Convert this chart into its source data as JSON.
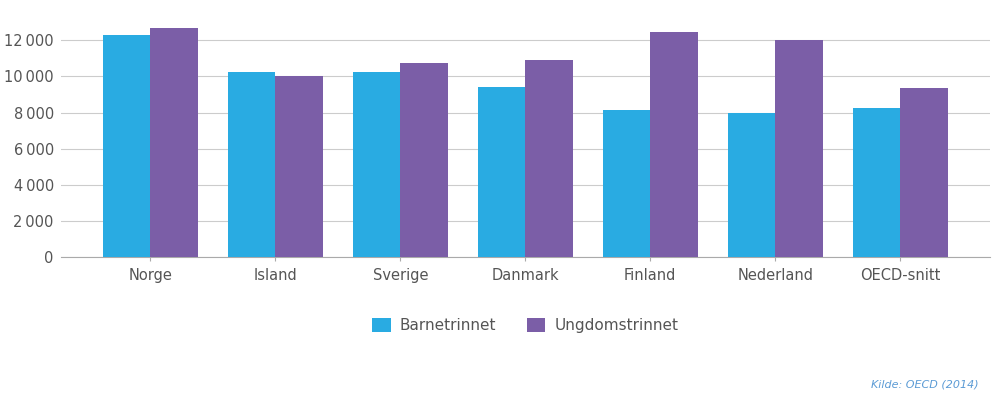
{
  "categories": [
    "Norge",
    "Island",
    "Sverige",
    "Danmark",
    "Finland",
    "Nederland",
    "OECD-snitt"
  ],
  "barnetrinnet": [
    12300,
    10250,
    10250,
    9400,
    8150,
    7950,
    8250
  ],
  "ungdomstrinnet": [
    12700,
    10050,
    10750,
    10900,
    12450,
    12000,
    9350
  ],
  "color_barn": "#29ABE2",
  "color_ungdom": "#7B5EA7",
  "ylim": [
    0,
    14000
  ],
  "yticks": [
    0,
    2000,
    4000,
    6000,
    8000,
    10000,
    12000
  ],
  "legend_barn": "Barnetrinnet",
  "legend_ungdom": "Ungdomstrinnet",
  "source_text": "Kilde: OECD (2014)",
  "background_color": "#FFFFFF",
  "bar_width": 0.38,
  "grid_color": "#CCCCCC"
}
